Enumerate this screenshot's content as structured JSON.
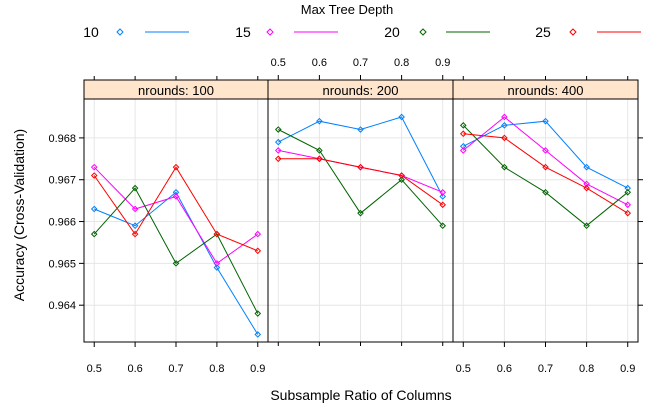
{
  "chart_data": {
    "type": "line",
    "title": "",
    "xlabel": "Subsample Ratio of Columns",
    "ylabel": "Accuracy (Cross-Validation)",
    "legend": {
      "title": "Max Tree Depth",
      "placement": "top",
      "markers": "open-diamond"
    },
    "x": [
      0.5,
      0.6,
      0.7,
      0.8,
      0.9
    ],
    "x_ticks": [
      "0.5",
      "0.6",
      "0.7",
      "0.8",
      "0.9"
    ],
    "xlim": [
      0.475,
      0.925
    ],
    "ylim": [
      0.96312,
      0.96893
    ],
    "y_ticks": [
      "0.964",
      "0.965",
      "0.966",
      "0.967",
      "0.968"
    ],
    "grid": true,
    "colors": {
      "strip_bg": "#ffe5cc",
      "grid": "#e6e6e6",
      "frame": "#000000"
    },
    "series_meta": [
      {
        "name": "10",
        "color": "#0080ff"
      },
      {
        "name": "15",
        "color": "#ff00ff"
      },
      {
        "name": "20",
        "color": "#006400"
      },
      {
        "name": "25",
        "color": "#ff0000"
      }
    ],
    "panels": [
      {
        "label": "nrounds: 100",
        "series": [
          {
            "name": "10",
            "values": [
              0.9663,
              0.9659,
              0.9667,
              0.9649,
              0.9633
            ]
          },
          {
            "name": "15",
            "values": [
              0.9673,
              0.9663,
              0.9666,
              0.965,
              0.9657
            ]
          },
          {
            "name": "20",
            "values": [
              0.9657,
              0.9668,
              0.965,
              0.9657,
              0.9638
            ]
          },
          {
            "name": "25",
            "values": [
              0.9671,
              0.9657,
              0.9673,
              0.9657,
              0.9653
            ]
          }
        ]
      },
      {
        "label": "nrounds: 200",
        "series": [
          {
            "name": "10",
            "values": [
              0.9679,
              0.9684,
              0.9682,
              0.9685,
              0.9666
            ]
          },
          {
            "name": "15",
            "values": [
              0.9677,
              0.9675,
              0.9673,
              0.9671,
              0.9667
            ]
          },
          {
            "name": "20",
            "values": [
              0.9682,
              0.9677,
              0.9662,
              0.967,
              0.9659
            ]
          },
          {
            "name": "25",
            "values": [
              0.9675,
              0.9675,
              0.9673,
              0.9671,
              0.9664
            ]
          }
        ]
      },
      {
        "label": "nrounds: 400",
        "series": [
          {
            "name": "10",
            "values": [
              0.9678,
              0.9683,
              0.9684,
              0.9673,
              0.9668
            ]
          },
          {
            "name": "15",
            "values": [
              0.9677,
              0.9685,
              0.9677,
              0.9669,
              0.9664
            ]
          },
          {
            "name": "20",
            "values": [
              0.9683,
              0.9673,
              0.9667,
              0.9659,
              0.9667
            ]
          },
          {
            "name": "25",
            "values": [
              0.9681,
              0.968,
              0.9673,
              0.9668,
              0.9662
            ]
          }
        ]
      }
    ]
  }
}
